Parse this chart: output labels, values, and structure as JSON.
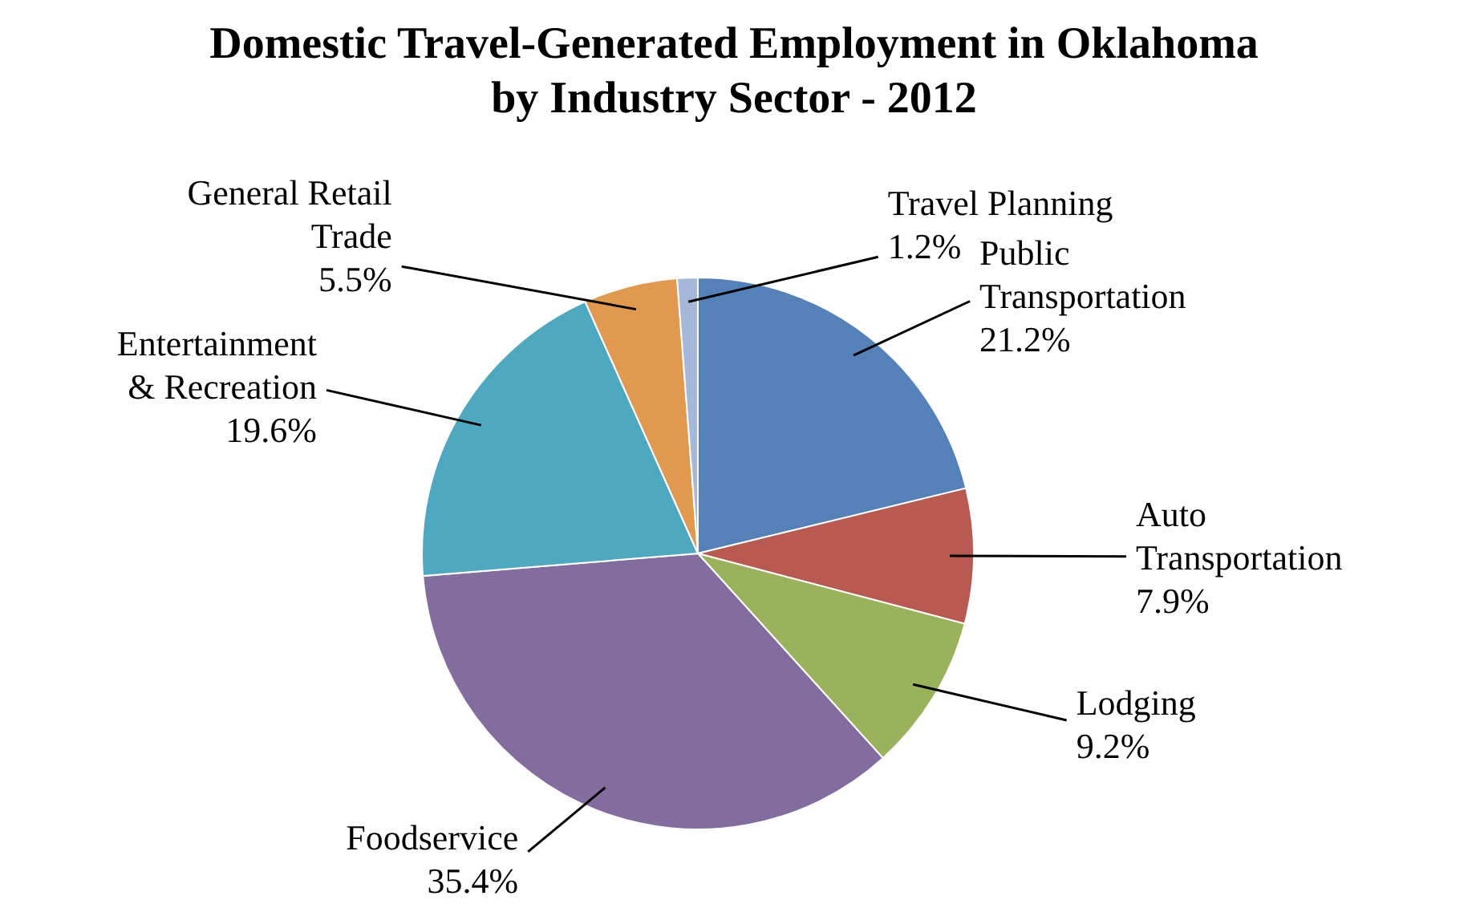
{
  "chart_data": {
    "type": "pie",
    "title": "Domestic Travel-Generated Employment in Oklahoma\nby Industry Sector - 2012",
    "categories": [
      "Public Transportation",
      "Auto Transportation",
      "Lodging",
      "Foodservice",
      "Entertainment & Recreation",
      "General Retail Trade",
      "Travel Planning"
    ],
    "values": [
      21.2,
      7.9,
      9.2,
      35.4,
      19.6,
      5.5,
      1.2
    ],
    "value_labels": [
      "21.2%",
      "7.9%",
      "9.2%",
      "35.4%",
      "19.6%",
      "5.5%",
      "1.2%"
    ],
    "colors": [
      "#5482b8",
      "#b85a52",
      "#9bb25d",
      "#836c9e",
      "#4ea8bf",
      "#e0994e",
      "#a5b8d9"
    ]
  }
}
